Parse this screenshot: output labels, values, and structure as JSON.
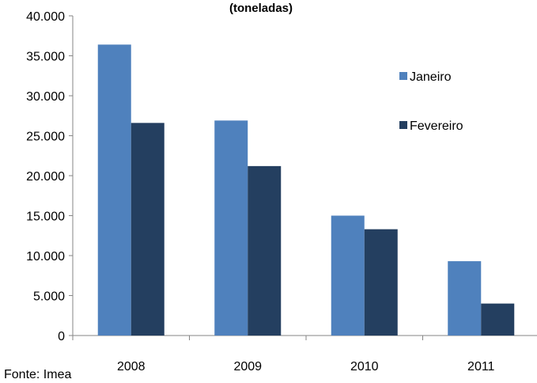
{
  "chart_data": {
    "type": "bar",
    "title": "(toneladas)",
    "categories": [
      "2008",
      "2009",
      "2010",
      "2011"
    ],
    "series": [
      {
        "name": "Janeiro",
        "color": "#4F81BD",
        "values": [
          36400,
          26900,
          15000,
          9300
        ]
      },
      {
        "name": "Fevereiro",
        "color": "#243F60",
        "values": [
          26600,
          21200,
          13300,
          4000
        ]
      }
    ],
    "yticks": [
      "0",
      "5.000",
      "10.000",
      "15.000",
      "20.000",
      "25.000",
      "30.000",
      "35.000",
      "40.000"
    ],
    "ylim": [
      0,
      40000
    ],
    "grid": false,
    "legend_position": "right"
  },
  "source": "Fonte: Imea"
}
